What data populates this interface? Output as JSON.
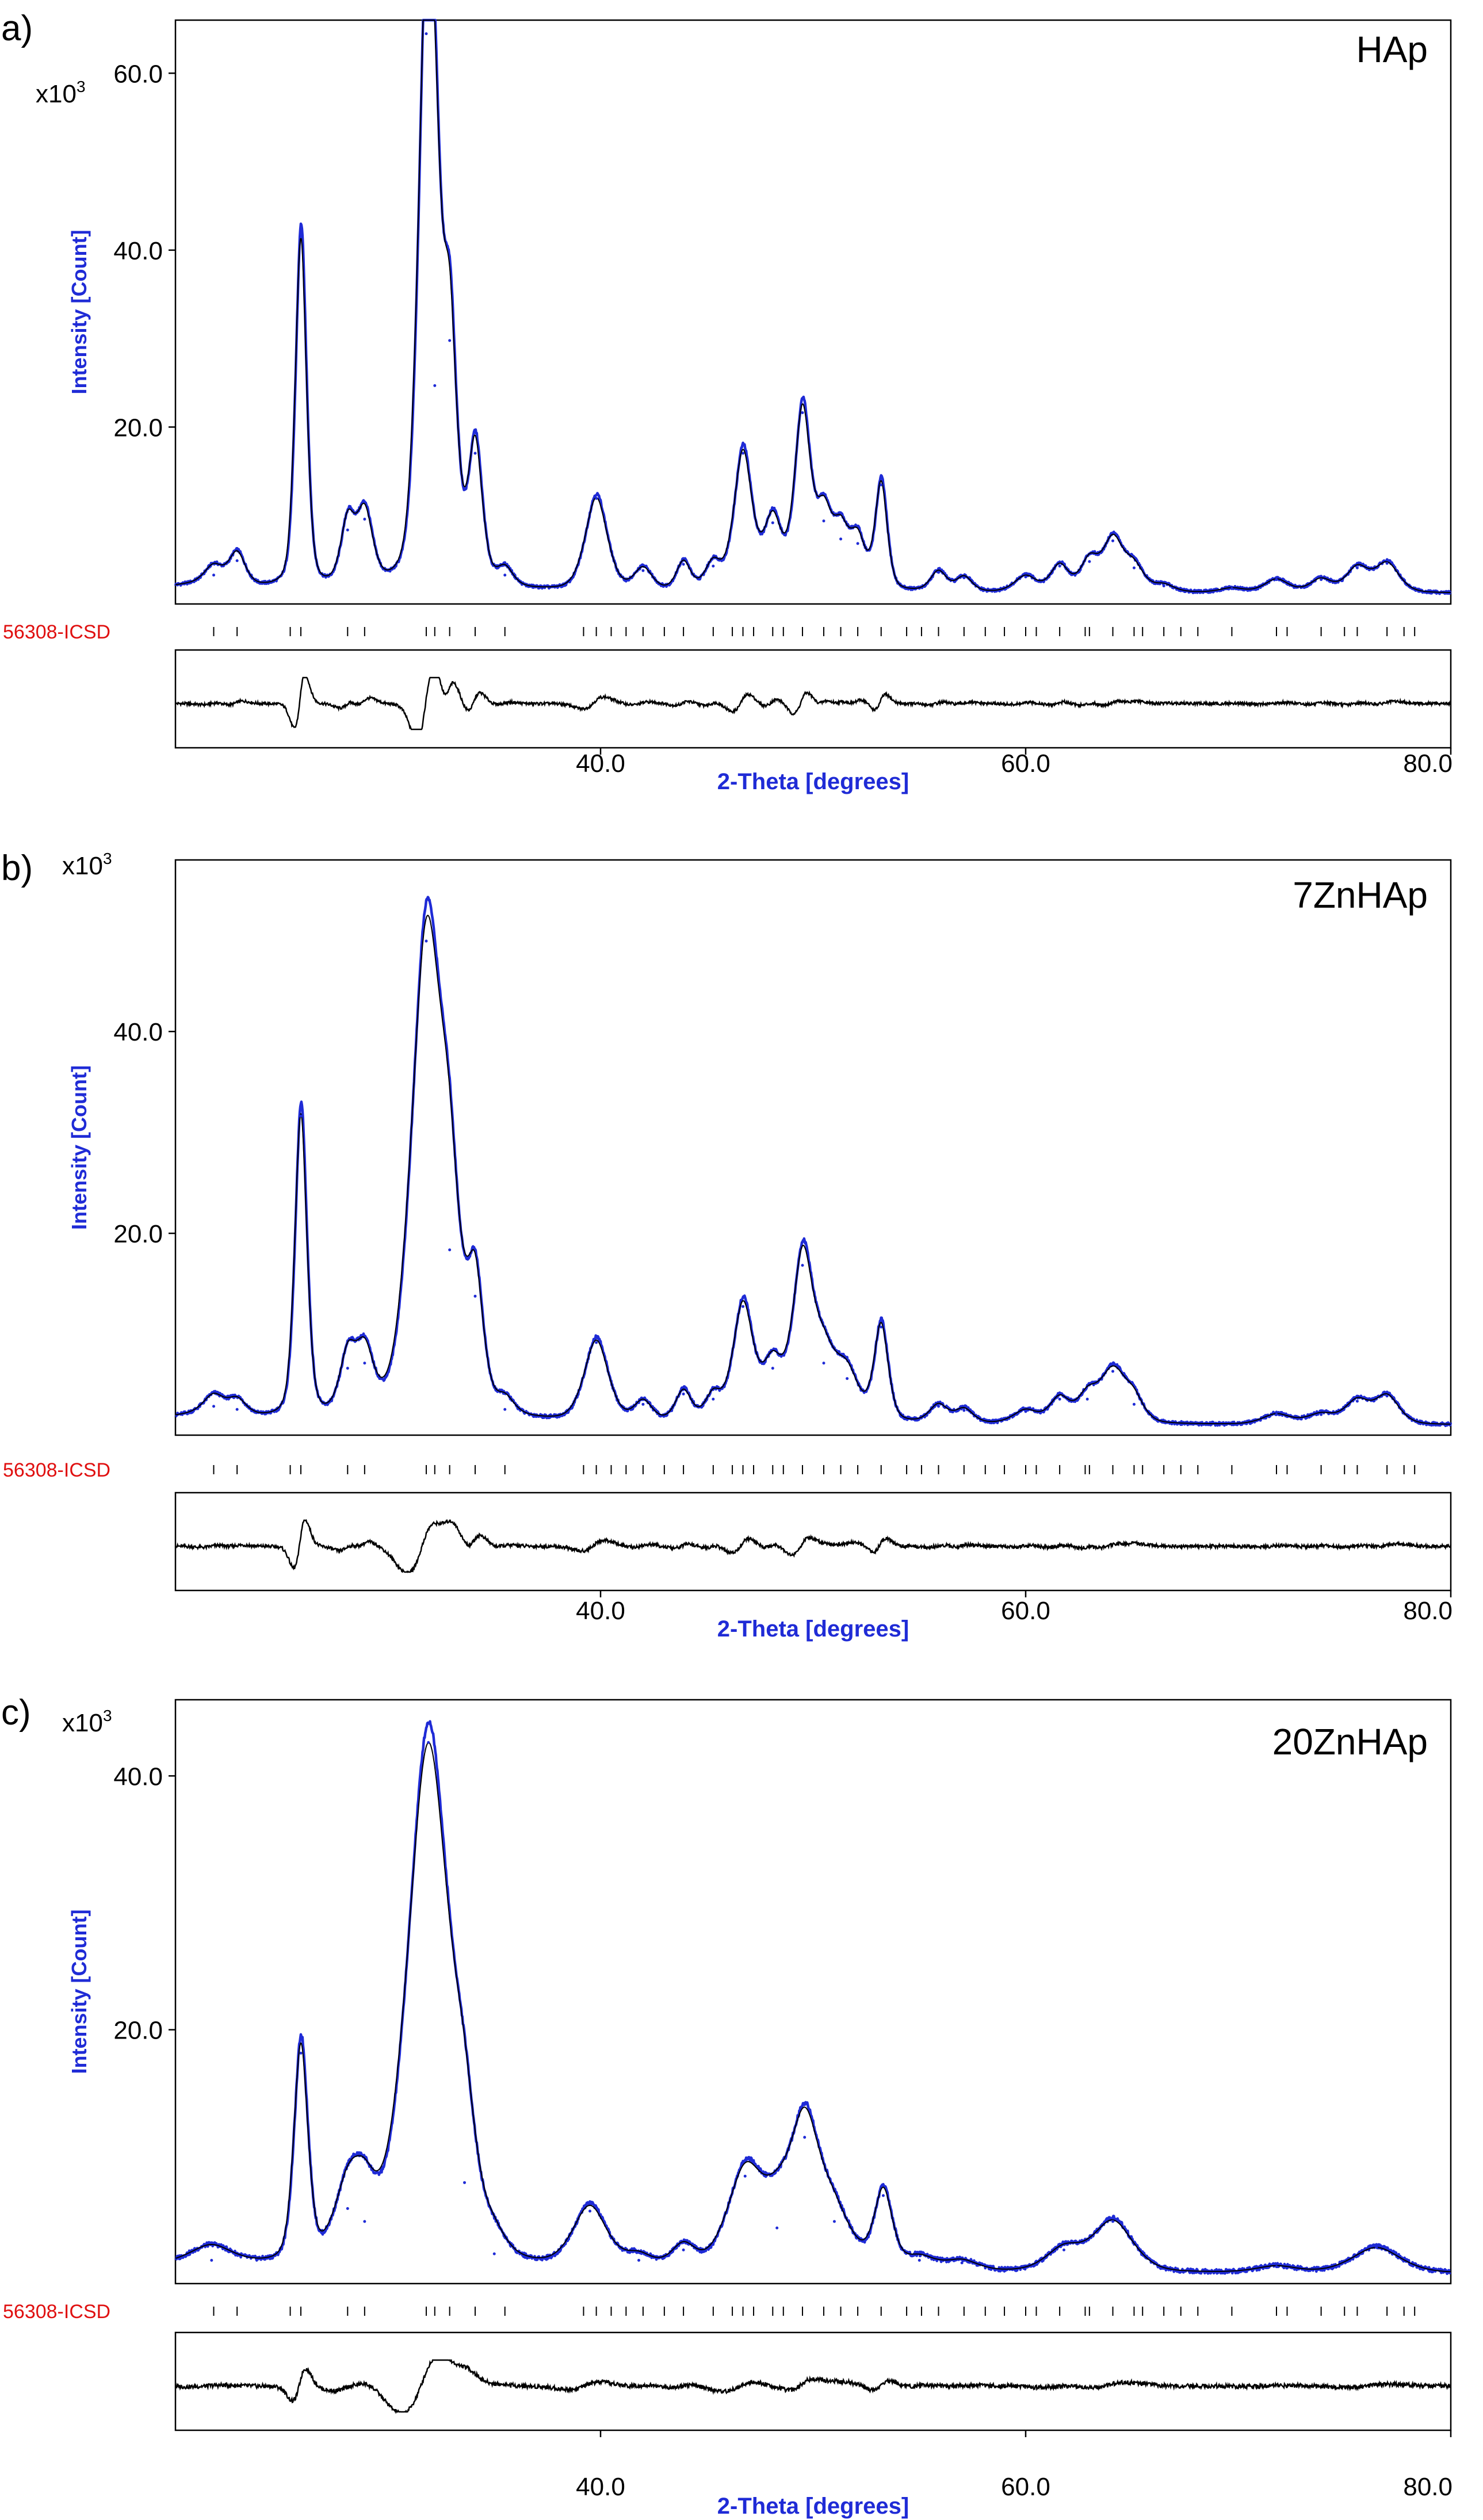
{
  "figure": {
    "panels": [
      {
        "id": "a",
        "letter": "a)",
        "sample": "HAp"
      },
      {
        "id": "b",
        "letter": "b)",
        "sample": "7ZnHAp"
      },
      {
        "id": "c",
        "letter": "c)",
        "sample": "20ZnHAp"
      }
    ],
    "y_unit_label": "x10",
    "y_unit_exponent": "3",
    "reference_label": "56308-ICSD",
    "ylabel": "Intensity [Count]",
    "xlabel": "2-Theta [degrees]",
    "colors": {
      "observed": "#1f2bd6",
      "calculated": "#000000",
      "reference": "#e01010",
      "axis_label": "#1f2bd6"
    }
  },
  "chart_data": [
    {
      "type": "line",
      "title": "HAp",
      "xlabel": "2-Theta [degrees]",
      "ylabel": "Intensity [Count]",
      "xlim": [
        20,
        80
      ],
      "ylim": [
        0,
        66
      ],
      "x_ticks": [
        40.0,
        60.0,
        80.0
      ],
      "x_tick_labels": [
        "40.0",
        "60.0",
        "80.0"
      ],
      "y_ticks": [
        20.0,
        40.0,
        60.0
      ],
      "y_tick_labels": [
        "20.0",
        "40.0",
        "60.0"
      ],
      "y_scale_factor": "x10^3",
      "background": 1.2,
      "peaks": [
        {
          "x": 21.8,
          "h": 2.0,
          "w": 0.45
        },
        {
          "x": 22.9,
          "h": 3.6,
          "w": 0.4
        },
        {
          "x": 25.9,
          "h": 39.5,
          "w": 0.28
        },
        {
          "x": 28.1,
          "h": 7.0,
          "w": 0.35
        },
        {
          "x": 28.9,
          "h": 8.2,
          "w": 0.4
        },
        {
          "x": 31.8,
          "h": 62.0,
          "w": 0.42
        },
        {
          "x": 32.2,
          "h": 23.0,
          "w": 0.35
        },
        {
          "x": 32.9,
          "h": 28.0,
          "w": 0.35
        },
        {
          "x": 34.1,
          "h": 15.5,
          "w": 0.35
        },
        {
          "x": 35.5,
          "h": 2.0,
          "w": 0.4
        },
        {
          "x": 39.8,
          "h": 10.5,
          "w": 0.55
        },
        {
          "x": 42.0,
          "h": 2.5,
          "w": 0.45
        },
        {
          "x": 43.9,
          "h": 3.2,
          "w": 0.35
        },
        {
          "x": 45.3,
          "h": 3.0,
          "w": 0.4
        },
        {
          "x": 46.7,
          "h": 15.5,
          "w": 0.45
        },
        {
          "x": 48.1,
          "h": 7.8,
          "w": 0.45
        },
        {
          "x": 49.5,
          "h": 20.0,
          "w": 0.4
        },
        {
          "x": 50.5,
          "h": 8.0,
          "w": 0.4
        },
        {
          "x": 51.3,
          "h": 6.0,
          "w": 0.4
        },
        {
          "x": 52.1,
          "h": 5.5,
          "w": 0.4
        },
        {
          "x": 53.2,
          "h": 12.0,
          "w": 0.3
        },
        {
          "x": 55.9,
          "h": 2.3,
          "w": 0.4
        },
        {
          "x": 57.1,
          "h": 1.7,
          "w": 0.4
        },
        {
          "x": 60.0,
          "h": 1.8,
          "w": 0.55
        },
        {
          "x": 61.6,
          "h": 3.0,
          "w": 0.45
        },
        {
          "x": 63.0,
          "h": 3.5,
          "w": 0.45
        },
        {
          "x": 64.1,
          "h": 5.8,
          "w": 0.5
        },
        {
          "x": 65.1,
          "h": 2.8,
          "w": 0.5
        },
        {
          "x": 66.5,
          "h": 0.8,
          "w": 0.5
        },
        {
          "x": 69.7,
          "h": 0.5,
          "w": 0.6
        },
        {
          "x": 71.8,
          "h": 1.5,
          "w": 0.6
        },
        {
          "x": 73.9,
          "h": 1.5,
          "w": 0.55
        },
        {
          "x": 75.6,
          "h": 2.8,
          "w": 0.55
        },
        {
          "x": 77.0,
          "h": 3.3,
          "w": 0.6
        }
      ],
      "reference_ticks": [
        21.8,
        22.9,
        25.4,
        25.9,
        28.1,
        28.9,
        31.8,
        32.2,
        32.9,
        34.1,
        35.5,
        39.2,
        39.8,
        40.5,
        41.2,
        42.0,
        43.0,
        43.9,
        45.3,
        46.2,
        46.7,
        47.2,
        48.1,
        48.6,
        49.5,
        50.5,
        51.3,
        52.1,
        53.2,
        54.4,
        55.1,
        55.9,
        57.1,
        58.1,
        59.0,
        60.0,
        60.5,
        61.6,
        62.8,
        63.0,
        64.1,
        65.1,
        65.5,
        66.5,
        67.3,
        68.1,
        69.7,
        71.8,
        72.3,
        73.9,
        75.0,
        75.6,
        77.0,
        77.8,
        78.3
      ]
    },
    {
      "type": "line",
      "title": "7ZnHAp",
      "xlabel": "2-Theta [degrees]",
      "ylabel": "Intensity [Count]",
      "xlim": [
        20,
        80
      ],
      "ylim": [
        0,
        57
      ],
      "x_ticks": [
        40.0,
        60.0,
        80.0
      ],
      "x_tick_labels": [
        "40.0",
        "60.0",
        "80.0"
      ],
      "y_ticks": [
        20.0,
        40.0
      ],
      "y_tick_labels": [
        "20.0",
        "40.0"
      ],
      "y_scale_factor": "x10^3",
      "background": 1.0,
      "peaks": [
        {
          "x": 21.8,
          "h": 1.8,
          "w": 0.5
        },
        {
          "x": 22.9,
          "h": 1.5,
          "w": 0.45
        },
        {
          "x": 25.9,
          "h": 30.0,
          "w": 0.3
        },
        {
          "x": 28.1,
          "h": 5.5,
          "w": 0.4
        },
        {
          "x": 28.9,
          "h": 6.0,
          "w": 0.45
        },
        {
          "x": 31.8,
          "h": 47.0,
          "w": 0.75
        },
        {
          "x": 32.9,
          "h": 17.0,
          "w": 0.55
        },
        {
          "x": 34.1,
          "h": 12.5,
          "w": 0.4
        },
        {
          "x": 35.5,
          "h": 1.5,
          "w": 0.45
        },
        {
          "x": 39.8,
          "h": 8.0,
          "w": 0.6
        },
        {
          "x": 42.0,
          "h": 2.0,
          "w": 0.45
        },
        {
          "x": 43.9,
          "h": 3.0,
          "w": 0.4
        },
        {
          "x": 45.3,
          "h": 2.5,
          "w": 0.4
        },
        {
          "x": 46.7,
          "h": 11.5,
          "w": 0.5
        },
        {
          "x": 48.1,
          "h": 5.5,
          "w": 0.5
        },
        {
          "x": 49.5,
          "h": 15.5,
          "w": 0.5
        },
        {
          "x": 50.5,
          "h": 6.0,
          "w": 0.6
        },
        {
          "x": 51.6,
          "h": 4.5,
          "w": 0.6
        },
        {
          "x": 53.2,
          "h": 9.5,
          "w": 0.35
        },
        {
          "x": 55.9,
          "h": 1.8,
          "w": 0.45
        },
        {
          "x": 57.1,
          "h": 1.4,
          "w": 0.45
        },
        {
          "x": 60.0,
          "h": 1.3,
          "w": 0.6
        },
        {
          "x": 61.6,
          "h": 2.5,
          "w": 0.5
        },
        {
          "x": 62.9,
          "h": 2.5,
          "w": 0.5
        },
        {
          "x": 64.1,
          "h": 5.2,
          "w": 0.65
        },
        {
          "x": 65.1,
          "h": 2.0,
          "w": 0.5
        },
        {
          "x": 71.8,
          "h": 1.0,
          "w": 0.7
        },
        {
          "x": 73.9,
          "h": 1.0,
          "w": 0.7
        },
        {
          "x": 75.6,
          "h": 2.3,
          "w": 0.6
        },
        {
          "x": 77.0,
          "h": 2.8,
          "w": 0.6
        }
      ],
      "reference_ticks": [
        21.8,
        22.9,
        25.4,
        25.9,
        28.1,
        28.9,
        31.8,
        32.2,
        32.9,
        34.1,
        35.5,
        39.2,
        39.8,
        40.5,
        41.2,
        42.0,
        43.0,
        43.9,
        45.3,
        46.2,
        46.7,
        47.2,
        48.1,
        48.6,
        49.5,
        50.5,
        51.3,
        52.1,
        53.2,
        54.4,
        55.1,
        55.9,
        57.1,
        58.1,
        59.0,
        60.0,
        60.5,
        61.6,
        62.8,
        63.0,
        64.1,
        65.1,
        65.5,
        66.5,
        67.3,
        68.1,
        69.7,
        71.8,
        72.3,
        73.9,
        75.0,
        75.6,
        77.0,
        77.8,
        78.3
      ]
    },
    {
      "type": "line",
      "title": "20ZnHAp",
      "xlabel": "2-Theta [degrees]",
      "ylabel": "Intensity [Count]",
      "xlim": [
        20,
        80
      ],
      "ylim": [
        0,
        46
      ],
      "x_ticks": [
        40.0,
        60.0,
        80.0
      ],
      "x_tick_labels": [
        "40.0",
        "60.0",
        "80.0"
      ],
      "y_ticks": [
        20.0,
        40.0
      ],
      "y_tick_labels": [
        "20.0",
        "40.0"
      ],
      "y_scale_factor": "x10^3",
      "background": 0.8,
      "peaks": [
        {
          "x": 21.7,
          "h": 1.0,
          "w": 0.9
        },
        {
          "x": 25.9,
          "h": 17.0,
          "w": 0.35
        },
        {
          "x": 28.1,
          "h": 5.0,
          "w": 0.7
        },
        {
          "x": 28.9,
          "h": 4.0,
          "w": 0.65
        },
        {
          "x": 31.9,
          "h": 41.0,
          "w": 1.05
        },
        {
          "x": 33.6,
          "h": 7.0,
          "w": 0.6
        },
        {
          "x": 35.0,
          "h": 1.5,
          "w": 0.6
        },
        {
          "x": 39.5,
          "h": 4.8,
          "w": 0.85
        },
        {
          "x": 41.8,
          "h": 1.0,
          "w": 0.7
        },
        {
          "x": 43.9,
          "h": 1.8,
          "w": 0.6
        },
        {
          "x": 46.8,
          "h": 7.5,
          "w": 0.9
        },
        {
          "x": 48.3,
          "h": 3.5,
          "w": 0.8
        },
        {
          "x": 49.6,
          "h": 10.5,
          "w": 0.75
        },
        {
          "x": 51.0,
          "h": 4.0,
          "w": 0.9
        },
        {
          "x": 53.3,
          "h": 6.0,
          "w": 0.45
        },
        {
          "x": 55.0,
          "h": 1.0,
          "w": 0.8
        },
        {
          "x": 57.0,
          "h": 0.8,
          "w": 0.8
        },
        {
          "x": 61.8,
          "h": 1.8,
          "w": 0.9
        },
        {
          "x": 64.1,
          "h": 4.0,
          "w": 1.0
        },
        {
          "x": 71.8,
          "h": 0.5,
          "w": 1.0
        },
        {
          "x": 76.5,
          "h": 2.0,
          "w": 1.2
        }
      ],
      "reference_ticks": [
        21.8,
        22.9,
        25.4,
        25.9,
        28.1,
        28.9,
        31.8,
        32.2,
        32.9,
        34.1,
        35.5,
        39.2,
        39.8,
        40.5,
        41.2,
        42.0,
        43.0,
        43.9,
        45.3,
        46.2,
        46.7,
        47.2,
        48.1,
        48.6,
        49.5,
        50.5,
        51.3,
        52.1,
        53.2,
        54.4,
        55.1,
        55.9,
        57.1,
        58.1,
        59.0,
        60.0,
        60.5,
        61.6,
        62.8,
        63.0,
        64.1,
        65.1,
        65.5,
        66.5,
        67.3,
        68.1,
        69.7,
        71.8,
        72.3,
        73.9,
        75.0,
        75.6,
        77.0,
        77.8,
        78.3
      ]
    }
  ]
}
